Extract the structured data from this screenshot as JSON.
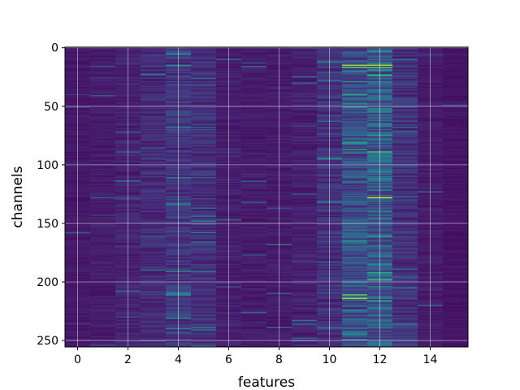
{
  "chart_data": {
    "type": "heatmap",
    "title": "",
    "xlabel": "features",
    "ylabel": "channels",
    "x_columns": 16,
    "y_rows": 256,
    "xlim": [
      -0.5,
      15.5
    ],
    "ylim": [
      255.5,
      -0.5
    ],
    "x_ticks": [
      0,
      2,
      4,
      6,
      8,
      10,
      12,
      14
    ],
    "y_ticks": [
      0,
      50,
      100,
      150,
      200,
      250
    ],
    "colormap": "viridis",
    "grid": true,
    "column_mean_intensity": [
      0.05,
      0.06,
      0.08,
      0.11,
      0.14,
      0.12,
      0.07,
      0.06,
      0.06,
      0.07,
      0.12,
      0.22,
      0.26,
      0.13,
      0.06,
      0.04
    ],
    "hotspots": [
      {
        "feature": 11,
        "channel": 15,
        "value": 0.85
      },
      {
        "feature": 12,
        "channel": 15,
        "value": 0.85
      },
      {
        "feature": 11,
        "channel": 17,
        "value": 0.75
      },
      {
        "feature": 12,
        "channel": 17,
        "value": 0.75
      },
      {
        "feature": 12,
        "channel": 24,
        "value": 0.6
      },
      {
        "feature": 11,
        "channel": 29,
        "value": 0.5
      },
      {
        "feature": 12,
        "channel": 128,
        "value": 0.9
      },
      {
        "feature": 12,
        "channel": 198,
        "value": 0.65
      },
      {
        "feature": 11,
        "channel": 211,
        "value": 0.75
      },
      {
        "feature": 11,
        "channel": 214,
        "value": 0.85
      },
      {
        "feature": 10,
        "channel": 95,
        "value": 0.5
      },
      {
        "feature": 12,
        "channel": 106,
        "value": 0.5
      },
      {
        "feature": 12,
        "channel": 185,
        "value": 0.45
      },
      {
        "feature": 4,
        "channel": 68,
        "value": 0.4
      },
      {
        "feature": 4,
        "channel": 111,
        "value": 0.4
      }
    ]
  }
}
